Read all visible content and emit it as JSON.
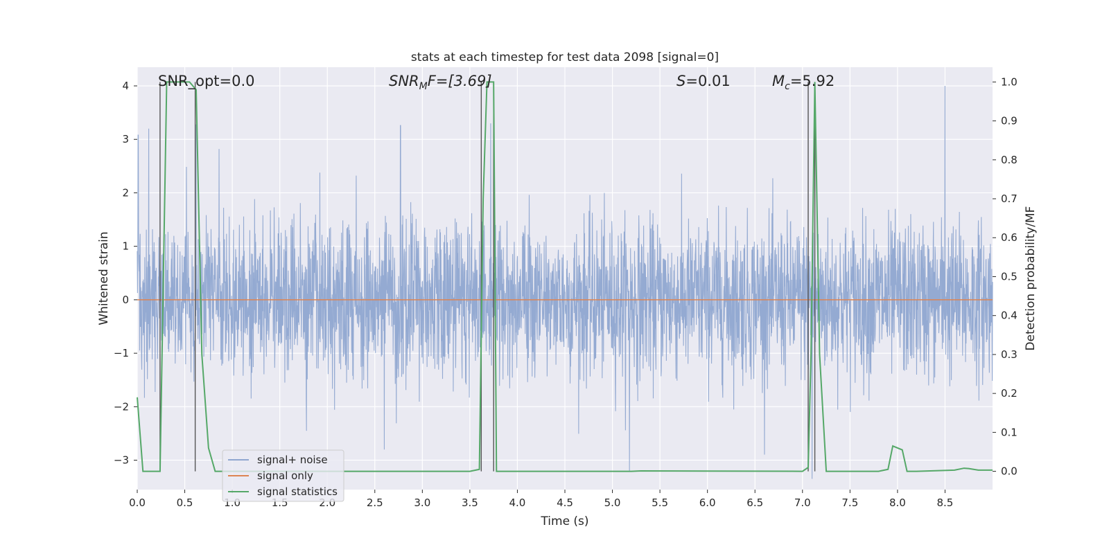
{
  "chart_data": {
    "type": "line",
    "title": "stats at each timestep for test data 2098 [signal=0]",
    "xlabel": "Time (s)",
    "ylabel_left": "Whitened strain",
    "ylabel_right": "Detection probability/MF",
    "xlim": [
      0.0,
      9.0
    ],
    "ylim_left": [
      -3.55,
      4.35
    ],
    "ylim_right": [
      -0.047,
      1.038
    ],
    "x_ticks": [
      "0.0",
      "0.5",
      "1.0",
      "1.5",
      "2.0",
      "2.5",
      "3.0",
      "3.5",
      "4.0",
      "4.5",
      "5.0",
      "5.5",
      "6.0",
      "6.5",
      "7.0",
      "7.5",
      "8.0",
      "8.5"
    ],
    "y_ticks_left": [
      "4",
      "3",
      "2",
      "1",
      "0",
      "−1",
      "−2",
      "−3"
    ],
    "y_ticks_right": [
      "1.0",
      "0.9",
      "0.8",
      "0.7",
      "0.6",
      "0.5",
      "0.4",
      "0.3",
      "0.2",
      "0.1",
      "0.0"
    ],
    "grid": true,
    "legend_position": "lower-left",
    "annotations": {
      "snr_opt": "SNR_opt=0.0",
      "snr_mf_symbol": "SNR",
      "snr_mf_sub": "M",
      "snr_mf_rest": "F=[3.69]",
      "s_symbol": "S",
      "s_rest": "=0.01",
      "mc_symbol": "M",
      "mc_sub": "c",
      "mc_rest": "=5.92"
    },
    "series": [
      {
        "name": "signal+ noise",
        "axis": "left",
        "color": "#8fa6d0",
        "description": "whitened noise time series, approx zero mean, |amplitude| mostly < 2.5, peak about 4.0 near t=8.5"
      },
      {
        "name": "signal only",
        "axis": "left",
        "color": "#dd8452",
        "x": [
          0.0,
          9.0
        ],
        "y": [
          0.0,
          0.0
        ]
      },
      {
        "name": "signal statistics",
        "axis": "right",
        "color": "#55a868",
        "x": [
          0.0,
          0.06,
          0.24,
          0.31,
          0.38,
          0.55,
          0.62,
          0.68,
          0.75,
          0.82,
          0.9,
          1.0,
          3.5,
          3.6,
          3.64,
          3.68,
          3.75,
          3.78,
          3.95,
          5.2,
          5.3,
          7.0,
          7.06,
          7.09,
          7.13,
          7.18,
          7.25,
          7.8,
          7.9,
          7.95,
          8.05,
          8.1,
          8.2,
          8.6,
          8.7,
          8.75,
          8.85,
          9.0
        ],
        "y": [
          0.19,
          0.0,
          0.0,
          1.0,
          1.0,
          1.0,
          0.98,
          0.3,
          0.06,
          0.0,
          0.0,
          0.0,
          0.0,
          0.005,
          0.7,
          1.0,
          1.0,
          0.0,
          0.0,
          0.0,
          0.001,
          0.0,
          0.01,
          0.3,
          1.0,
          0.3,
          0.0,
          0.0,
          0.005,
          0.065,
          0.055,
          0.0,
          0.0,
          0.003,
          0.008,
          0.007,
          0.003,
          0.003
        ]
      }
    ],
    "vertical_lines": [
      0.24,
      0.61,
      3.62,
      3.75,
      7.06,
      7.13
    ],
    "vertical_line_color": "#555555"
  },
  "noise_seed": 2098,
  "noise_peaks": [
    {
      "x": 0.01,
      "y": 3.08
    },
    {
      "x": 0.12,
      "y": 3.2
    },
    {
      "x": 0.62,
      "y": 3.28
    },
    {
      "x": 0.86,
      "y": 2.82
    },
    {
      "x": 2.77,
      "y": 3.26
    },
    {
      "x": 3.72,
      "y": 3.3
    },
    {
      "x": 8.5,
      "y": 4.0
    },
    {
      "x": 5.18,
      "y": -3.2
    },
    {
      "x": 2.6,
      "y": -2.8
    },
    {
      "x": 7.1,
      "y": -3.35
    }
  ]
}
